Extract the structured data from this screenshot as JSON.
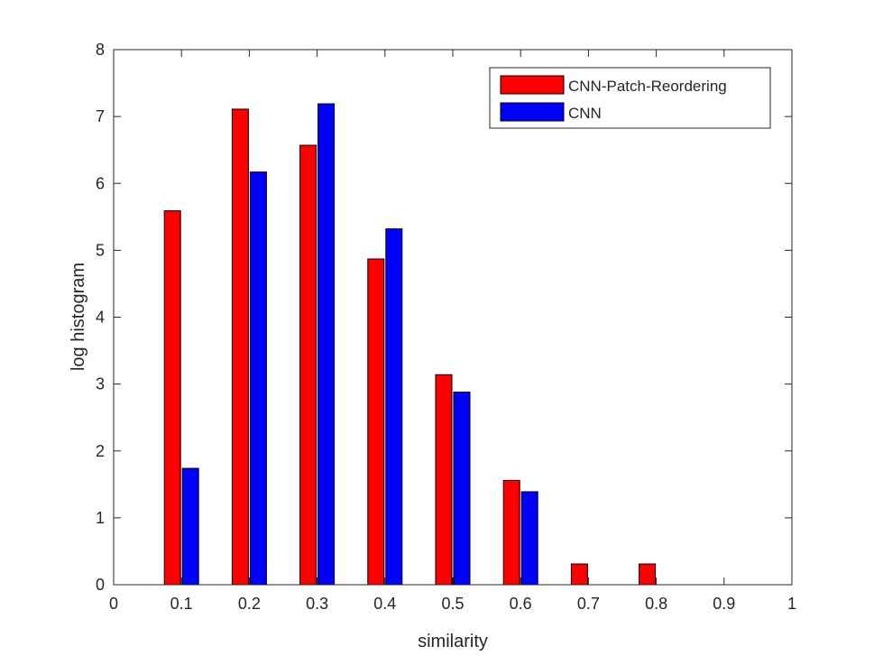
{
  "chart_data": {
    "type": "bar",
    "title": "",
    "xlabel": "similarity",
    "ylabel": "log histogram",
    "xlim": [
      0,
      1
    ],
    "ylim": [
      0,
      8
    ],
    "xticks": [
      "0",
      "0.1",
      "0.2",
      "0.3",
      "0.4",
      "0.5",
      "0.6",
      "0.7",
      "0.8",
      "0.9",
      "1"
    ],
    "yticks": [
      "0",
      "1",
      "2",
      "3",
      "4",
      "5",
      "6",
      "7",
      "8"
    ],
    "categories": [
      0.1,
      0.2,
      0.3,
      0.4,
      0.5,
      0.6,
      0.7,
      0.8,
      0.9
    ],
    "series": [
      {
        "name": "CNN-Patch-Reordering",
        "color": "#ff0000",
        "values": [
          5.59,
          7.11,
          6.57,
          4.87,
          3.14,
          1.56,
          0.31,
          0.31,
          0
        ]
      },
      {
        "name": "CNN",
        "color": "#0000ff",
        "values": [
          1.74,
          6.17,
          7.19,
          5.32,
          2.88,
          1.39,
          0,
          0,
          0
        ]
      }
    ],
    "legend_position": "top-right",
    "grid": false
  }
}
